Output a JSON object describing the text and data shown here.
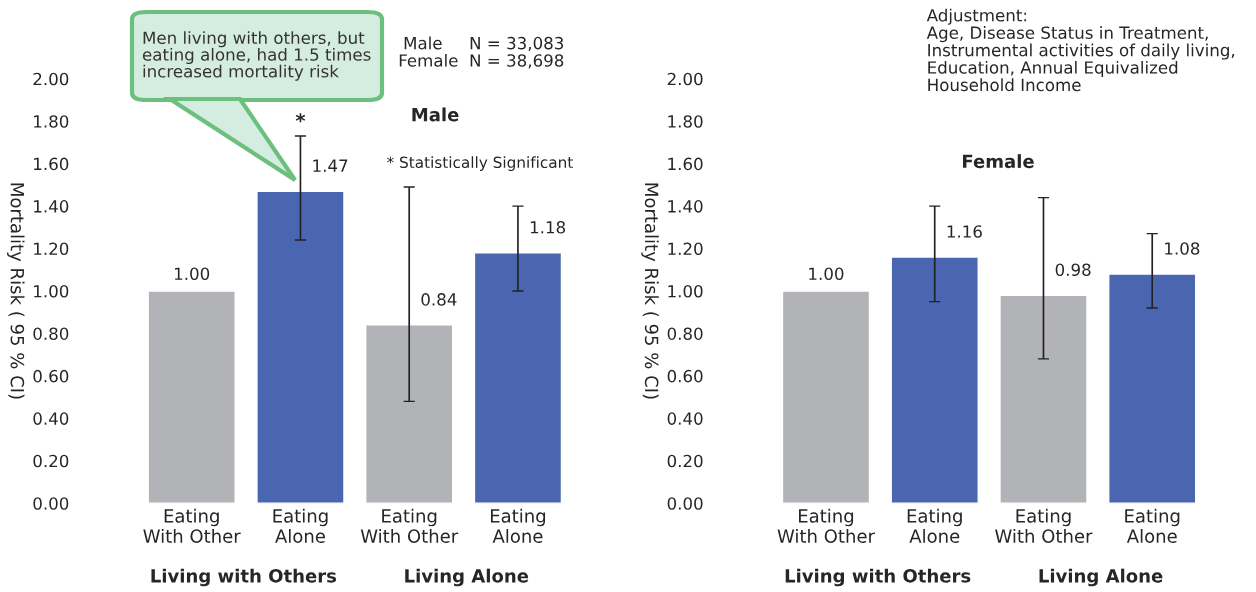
{
  "chart_data": [
    {
      "type": "bar",
      "title": "Male",
      "ylabel": "Mortality Risk ( 95 % CI)",
      "categories": [
        "Eating\nWith Other",
        "Eating\nAlone",
        "Eating\nWith Other",
        "Eating\nAlone"
      ],
      "values": [
        1.0,
        1.47,
        0.84,
        1.18
      ],
      "colors": [
        "#b2b3b7",
        "#4a66b0",
        "#b2b3b7",
        "#4a66b0"
      ],
      "errors": [
        null,
        [
          1.24,
          1.73
        ],
        [
          0.48,
          1.49
        ],
        [
          1.0,
          1.4
        ]
      ],
      "value_labels": [
        "1.00",
        "1.47",
        "0.84",
        "1.18"
      ],
      "ylim": [
        0,
        2
      ],
      "yticks": [
        {
          "value": 0,
          "label": "0.00"
        },
        {
          "value": 0.2,
          "label": "0.20"
        },
        {
          "value": 0.4,
          "label": "0.40"
        },
        {
          "value": 0.6,
          "label": "0.60"
        },
        {
          "value": 0.8,
          "label": "0.80"
        },
        {
          "value": 1.0,
          "label": "1.00"
        },
        {
          "value": 1.2,
          "label": "1.20"
        },
        {
          "value": 1.4,
          "label": "1.40"
        },
        {
          "value": 1.6,
          "label": "1.60"
        },
        {
          "value": 1.8,
          "label": "1.80"
        },
        {
          "value": 2.0,
          "label": "2.00"
        }
      ],
      "grid": false,
      "annotations": [
        "Men living with others, but\neating alone, had 1.5 times\nincreased mortality risk",
        {
          "text": "*",
          "x": "Eating\nAlone",
          "y": 1.73
        },
        "* Statistically Significant",
        "Male     N = 33,083\nFemale  N = 38,698",
        "Living with Others",
        "Living Alone"
      ]
    },
    {
      "type": "bar",
      "title": "Female",
      "ylabel": "Mortality Risk ( 95 % CI)",
      "categories": [
        "Eating\nWith Other",
        "Eating\nAlone",
        "Eating\nWith Other",
        "Eating\nAlone"
      ],
      "values": [
        1.0,
        1.16,
        0.98,
        1.08
      ],
      "colors": [
        "#b2b3b7",
        "#4a66b0",
        "#b2b3b7",
        "#4a66b0"
      ],
      "errors": [
        null,
        [
          0.95,
          1.4
        ],
        [
          0.68,
          1.44
        ],
        [
          0.92,
          1.27
        ]
      ],
      "value_labels": [
        "1.00",
        "1.16",
        "0.98",
        "1.08"
      ],
      "ylim": [
        0,
        2
      ],
      "yticks": [
        {
          "value": 0,
          "label": "0.00"
        },
        {
          "value": 0.2,
          "label": "0.20"
        },
        {
          "value": 0.4,
          "label": "0.40"
        },
        {
          "value": 0.6,
          "label": "0.60"
        },
        {
          "value": 0.8,
          "label": "0.80"
        },
        {
          "value": 1.0,
          "label": "1.00"
        },
        {
          "value": 1.2,
          "label": "1.20"
        },
        {
          "value": 1.4,
          "label": "1.40"
        },
        {
          "value": 1.6,
          "label": "1.60"
        },
        {
          "value": 1.8,
          "label": "1.80"
        },
        {
          "value": 2.0,
          "label": "2.00"
        }
      ],
      "grid": false,
      "annotations": [
        "Adjustment:\nAge, Disease Status in Treatment,\nInstrumental activities of daily living,\nEducation, Annual Equivalized\nHousehold Income",
        "Living with Others",
        "Living Alone"
      ]
    }
  ]
}
